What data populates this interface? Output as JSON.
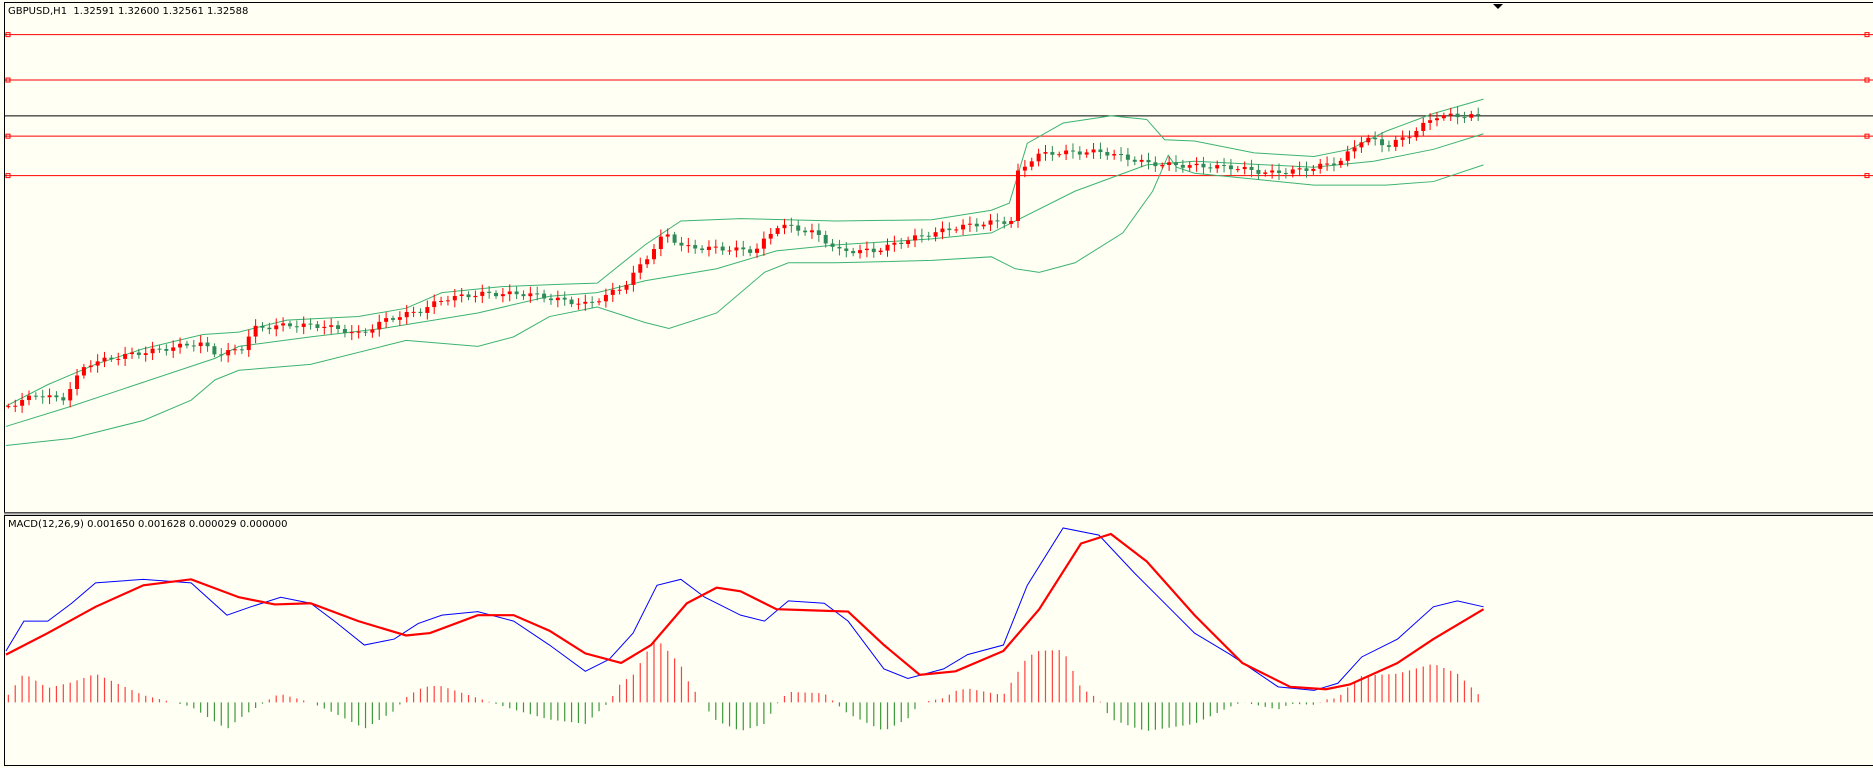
{
  "header": {
    "symbol_line": "GBPUSD,H1  1.32591 1.32600 1.32561 1.32588"
  },
  "indicator": {
    "macd_line": "MACD(12,26,9) 0.001650 0.001628 0.000029 0.000000"
  }
}
